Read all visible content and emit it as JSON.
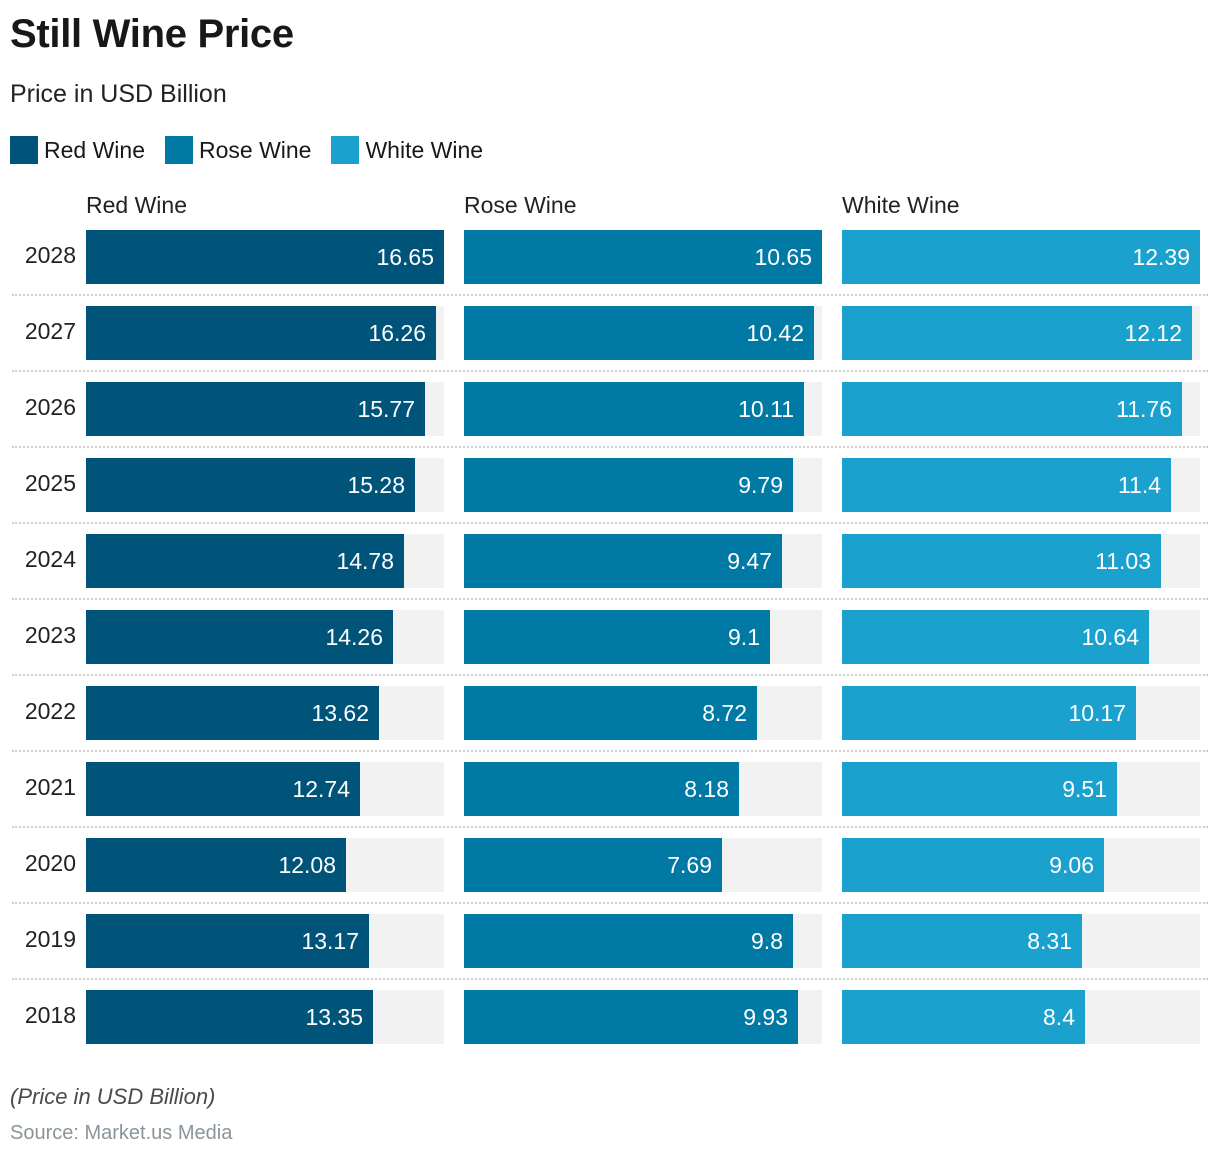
{
  "chart_data": {
    "type": "bar",
    "title": "Still Wine Price",
    "subtitle": "Price in USD Billion",
    "orientation": "horizontal",
    "layout": "small-multiples",
    "categories": [
      "2028",
      "2027",
      "2026",
      "2025",
      "2024",
      "2023",
      "2022",
      "2021",
      "2020",
      "2019",
      "2018"
    ],
    "series": [
      {
        "name": "Red Wine",
        "color": "#00547a",
        "values": [
          16.65,
          16.26,
          15.77,
          15.28,
          14.78,
          14.26,
          13.62,
          12.74,
          12.08,
          13.17,
          13.35
        ]
      },
      {
        "name": "Rose Wine",
        "color": "#0079a4",
        "values": [
          10.65,
          10.42,
          10.11,
          9.79,
          9.47,
          9.1,
          8.72,
          8.18,
          7.69,
          9.8,
          9.93
        ]
      },
      {
        "name": "White Wine",
        "color": "#1aa1ce",
        "values": [
          12.39,
          12.12,
          11.76,
          11.4,
          11.03,
          10.64,
          10.17,
          9.51,
          9.06,
          8.31,
          8.4
        ]
      }
    ],
    "legend": [
      "Red Wine",
      "Rose Wine",
      "White Wine"
    ],
    "legend_position": "top-left",
    "track_color": "#f2f2f2",
    "grid": false,
    "xlabel": "",
    "ylabel": ""
  },
  "footer": {
    "note": "(Price in USD Billion)",
    "source": "Source: Market.us Media"
  }
}
